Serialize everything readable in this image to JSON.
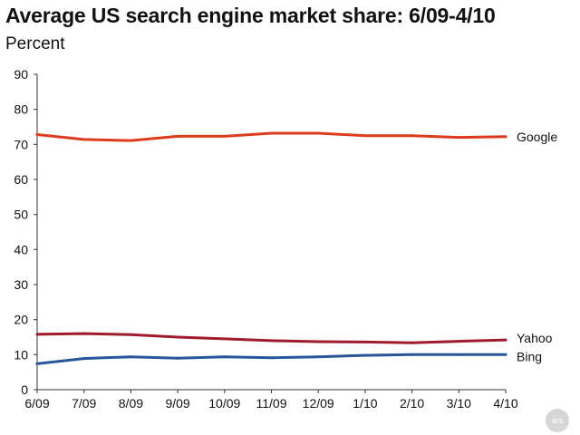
{
  "header": {
    "title": "Average US search engine market share: 6/09-4/10",
    "subtitle": "Percent"
  },
  "watermark": {
    "text": "ars"
  },
  "chart_data": {
    "type": "line",
    "title": "Average US search engine market share: 6/09-4/10",
    "ylabel": "Percent",
    "xlabel": "",
    "categories": [
      "6/09",
      "7/09",
      "8/09",
      "9/09",
      "10/09",
      "11/09",
      "12/09",
      "1/10",
      "2/10",
      "3/10",
      "4/10"
    ],
    "ylim": [
      0,
      90
    ],
    "yticks": [
      0,
      10,
      20,
      30,
      40,
      50,
      60,
      70,
      80,
      90
    ],
    "grid": false,
    "legend": "right-end labels",
    "series": [
      {
        "name": "Google",
        "color": "#dd3b1e",
        "values": [
          72.8,
          71.4,
          71.1,
          72.3,
          72.3,
          73.2,
          73.2,
          72.5,
          72.5,
          72.0,
          72.2
        ]
      },
      {
        "name": "Yahoo",
        "color": "#9e1b2a",
        "values": [
          15.8,
          16.0,
          15.7,
          15.0,
          14.5,
          14.0,
          13.7,
          13.6,
          13.4,
          13.8,
          14.2
        ]
      },
      {
        "name": "Bing",
        "color": "#27579a",
        "values": [
          7.4,
          8.9,
          9.4,
          9.0,
          9.4,
          9.1,
          9.4,
          9.8,
          10.0,
          10.0,
          10.0
        ]
      }
    ]
  }
}
